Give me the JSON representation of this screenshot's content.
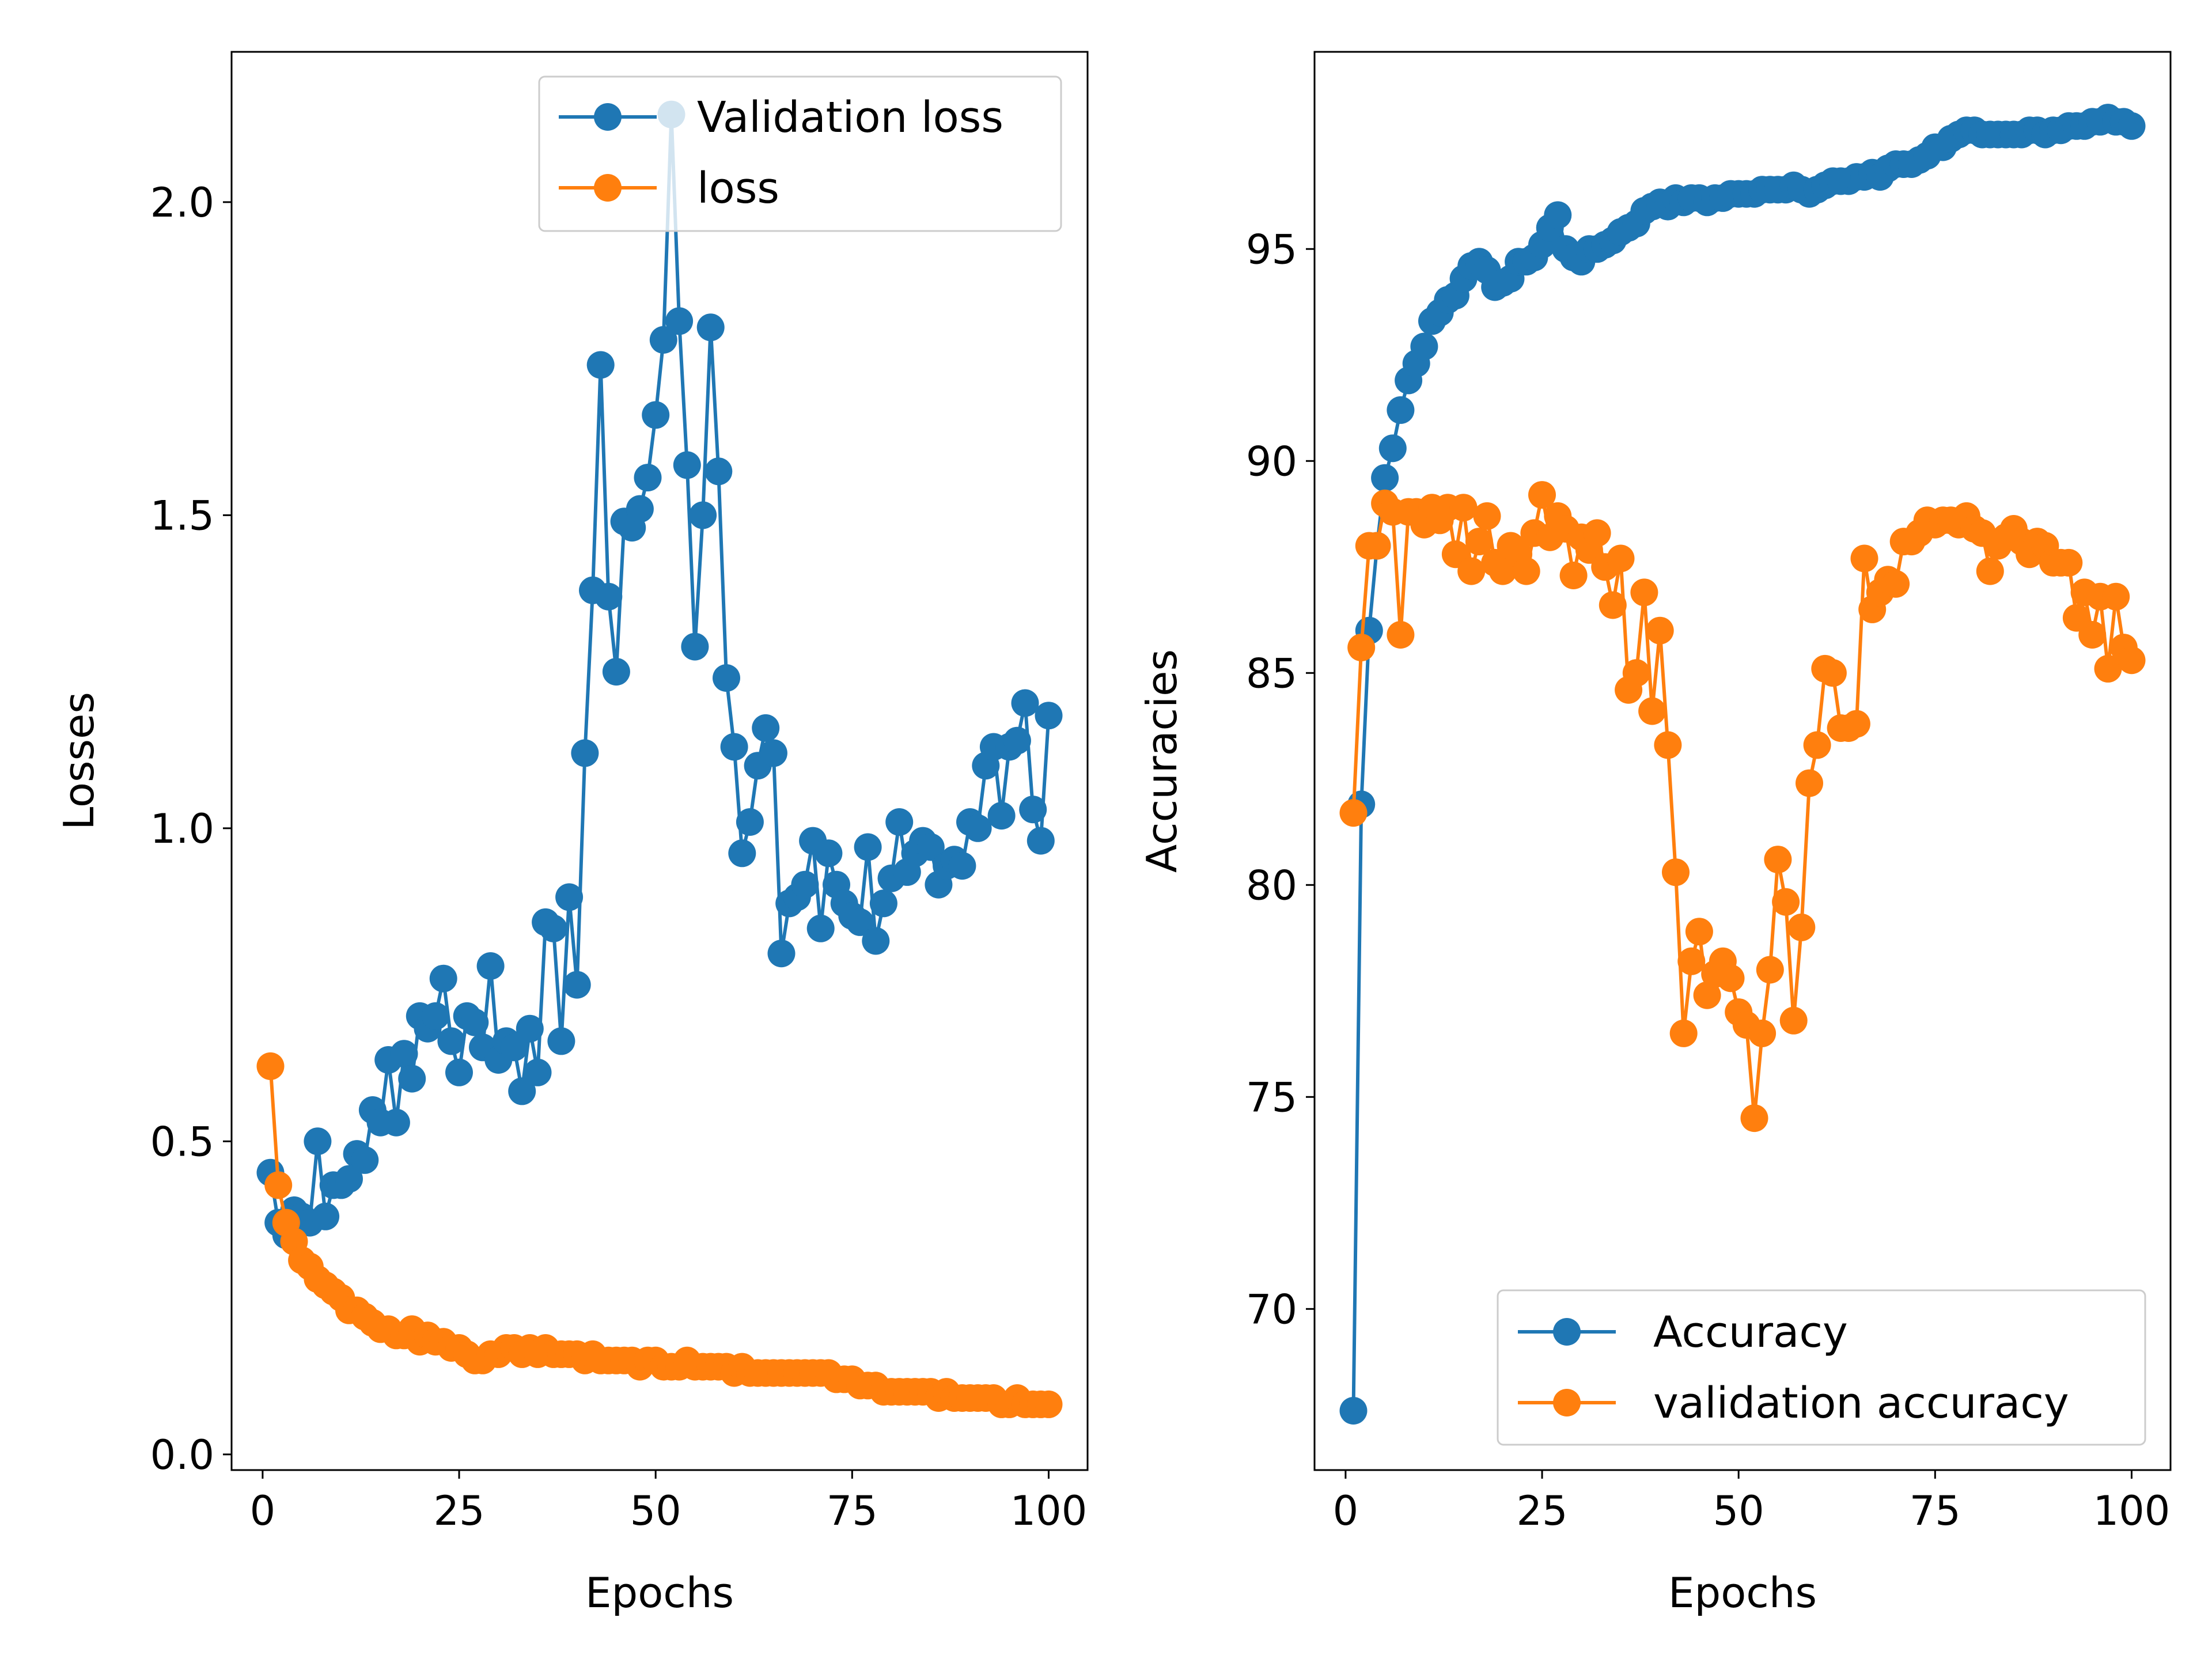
{
  "colors": {
    "blue": "#1f77b4",
    "orange": "#ff7f0e"
  },
  "chart_data": [
    {
      "type": "line",
      "xlabel": "Epochs",
      "ylabel": "Losses",
      "xlim": [
        -3.95,
        104.95
      ],
      "ylim": [
        -0.025,
        2.24
      ],
      "xticks": [
        0,
        25,
        50,
        75,
        100
      ],
      "yticks": [
        0.0,
        0.5,
        1.0,
        1.5,
        2.0
      ],
      "xtick_labels": [
        "0",
        "25",
        "50",
        "75",
        "100"
      ],
      "ytick_labels": [
        "0.0",
        "0.5",
        "1.0",
        "1.5",
        "2.0"
      ],
      "legend_position": "top-right",
      "x": [
        1,
        2,
        3,
        4,
        5,
        6,
        7,
        8,
        9,
        10,
        11,
        12,
        13,
        14,
        15,
        16,
        17,
        18,
        19,
        20,
        21,
        22,
        23,
        24,
        25,
        26,
        27,
        28,
        29,
        30,
        31,
        32,
        33,
        34,
        35,
        36,
        37,
        38,
        39,
        40,
        41,
        42,
        43,
        44,
        45,
        46,
        47,
        48,
        49,
        50,
        51,
        52,
        53,
        54,
        55,
        56,
        57,
        58,
        59,
        60,
        61,
        62,
        63,
        64,
        65,
        66,
        67,
        68,
        69,
        70,
        71,
        72,
        73,
        74,
        75,
        76,
        77,
        78,
        79,
        80,
        81,
        82,
        83,
        84,
        85,
        86,
        87,
        88,
        89,
        90,
        91,
        92,
        93,
        94,
        95,
        96,
        97,
        98,
        99,
        100
      ],
      "series": [
        {
          "name": "Validation loss",
          "color": "blue",
          "values": [
            0.45,
            0.37,
            0.35,
            0.39,
            0.38,
            0.37,
            0.5,
            0.38,
            0.43,
            0.43,
            0.44,
            0.48,
            0.47,
            0.55,
            0.53,
            0.63,
            0.53,
            0.64,
            0.6,
            0.7,
            0.68,
            0.7,
            0.76,
            0.66,
            0.61,
            0.7,
            0.69,
            0.65,
            0.78,
            0.63,
            0.66,
            0.65,
            0.58,
            0.68,
            0.61,
            0.85,
            0.84,
            0.66,
            0.89,
            0.75,
            1.12,
            1.38,
            1.74,
            1.37,
            1.25,
            1.49,
            1.48,
            1.51,
            1.56,
            1.66,
            1.78,
            2.14,
            1.81,
            1.58,
            1.29,
            1.5,
            1.8,
            1.57,
            1.24,
            1.13,
            0.96,
            1.01,
            1.1,
            1.16,
            1.12,
            0.8,
            0.88,
            0.89,
            0.91,
            0.98,
            0.84,
            0.96,
            0.91,
            0.88,
            0.86,
            0.85,
            0.97,
            0.82,
            0.88,
            0.92,
            1.01,
            0.93,
            0.96,
            0.98,
            0.97,
            0.91,
            0.94,
            0.95,
            0.94,
            1.01,
            1.0,
            1.1,
            1.13,
            1.02,
            1.13,
            1.14,
            1.2,
            1.03,
            0.98,
            1.18
          ]
        },
        {
          "name": "loss",
          "color": "orange",
          "values": [
            0.62,
            0.43,
            0.37,
            0.34,
            0.31,
            0.3,
            0.28,
            0.27,
            0.26,
            0.25,
            0.23,
            0.23,
            0.22,
            0.21,
            0.2,
            0.2,
            0.19,
            0.19,
            0.2,
            0.18,
            0.19,
            0.18,
            0.18,
            0.17,
            0.17,
            0.16,
            0.15,
            0.15,
            0.16,
            0.16,
            0.17,
            0.17,
            0.16,
            0.17,
            0.16,
            0.17,
            0.16,
            0.16,
            0.16,
            0.16,
            0.15,
            0.16,
            0.15,
            0.15,
            0.15,
            0.15,
            0.15,
            0.14,
            0.15,
            0.15,
            0.14,
            0.14,
            0.14,
            0.15,
            0.14,
            0.14,
            0.14,
            0.14,
            0.14,
            0.13,
            0.14,
            0.13,
            0.13,
            0.13,
            0.13,
            0.13,
            0.13,
            0.13,
            0.13,
            0.13,
            0.13,
            0.13,
            0.12,
            0.12,
            0.12,
            0.11,
            0.11,
            0.11,
            0.1,
            0.1,
            0.1,
            0.1,
            0.1,
            0.1,
            0.1,
            0.09,
            0.1,
            0.09,
            0.09,
            0.09,
            0.09,
            0.09,
            0.09,
            0.08,
            0.08,
            0.09,
            0.08,
            0.08,
            0.08,
            0.08
          ]
        }
      ]
    },
    {
      "type": "line",
      "xlabel": "Epochs",
      "ylabel": "Accuracies",
      "xlim": [
        -3.95,
        104.95
      ],
      "ylim": [
        66.2,
        99.65
      ],
      "xticks": [
        0,
        25,
        50,
        75,
        100
      ],
      "yticks": [
        70,
        75,
        80,
        85,
        90,
        95
      ],
      "xtick_labels": [
        "0",
        "25",
        "50",
        "75",
        "100"
      ],
      "ytick_labels": [
        "70",
        "75",
        "80",
        "85",
        "90",
        "95"
      ],
      "legend_position": "bottom-right",
      "x": [
        1,
        2,
        3,
        4,
        5,
        6,
        7,
        8,
        9,
        10,
        11,
        12,
        13,
        14,
        15,
        16,
        17,
        18,
        19,
        20,
        21,
        22,
        23,
        24,
        25,
        26,
        27,
        28,
        29,
        30,
        31,
        32,
        33,
        34,
        35,
        36,
        37,
        38,
        39,
        40,
        41,
        42,
        43,
        44,
        45,
        46,
        47,
        48,
        49,
        50,
        51,
        52,
        53,
        54,
        55,
        56,
        57,
        58,
        59,
        60,
        61,
        62,
        63,
        64,
        65,
        66,
        67,
        68,
        69,
        70,
        71,
        72,
        73,
        74,
        75,
        76,
        77,
        78,
        79,
        80,
        81,
        82,
        83,
        84,
        85,
        86,
        87,
        88,
        89,
        90,
        91,
        92,
        93,
        94,
        95,
        96,
        97,
        98,
        99,
        100
      ],
      "series": [
        {
          "name": "Accuracy",
          "color": "blue",
          "values": [
            67.6,
            81.9,
            86.0,
            88.0,
            89.6,
            90.3,
            91.2,
            91.9,
            92.3,
            92.7,
            93.3,
            93.5,
            93.8,
            93.9,
            94.3,
            94.6,
            94.7,
            94.5,
            94.1,
            94.2,
            94.3,
            94.7,
            94.7,
            94.8,
            95.1,
            95.5,
            95.8,
            95.0,
            94.8,
            94.7,
            95.0,
            95.0,
            95.1,
            95.2,
            95.4,
            95.5,
            95.6,
            95.9,
            96.0,
            96.1,
            96.0,
            96.2,
            96.1,
            96.2,
            96.2,
            96.1,
            96.2,
            96.2,
            96.3,
            96.3,
            96.3,
            96.3,
            96.4,
            96.4,
            96.4,
            96.4,
            96.5,
            96.4,
            96.3,
            96.4,
            96.5,
            96.6,
            96.6,
            96.6,
            96.7,
            96.7,
            96.8,
            96.7,
            96.9,
            97.0,
            97.0,
            97.0,
            97.1,
            97.2,
            97.4,
            97.4,
            97.6,
            97.7,
            97.8,
            97.8,
            97.7,
            97.7,
            97.7,
            97.7,
            97.7,
            97.7,
            97.8,
            97.8,
            97.7,
            97.8,
            97.8,
            97.9,
            97.9,
            97.9,
            98.0,
            98.0,
            98.1,
            98.0,
            98.0,
            97.9
          ]
        },
        {
          "name": "validation accuracy",
          "color": "orange",
          "values": [
            81.7,
            85.6,
            88.0,
            88.0,
            89.0,
            88.8,
            85.9,
            88.8,
            88.8,
            88.5,
            88.9,
            88.6,
            88.9,
            87.8,
            88.9,
            87.4,
            88.1,
            88.7,
            87.6,
            87.4,
            88.0,
            87.8,
            87.4,
            88.3,
            89.2,
            88.2,
            88.7,
            88.4,
            87.3,
            88.2,
            87.9,
            88.3,
            87.5,
            86.6,
            87.7,
            84.6,
            85.0,
            86.9,
            84.1,
            86.0,
            83.3,
            80.3,
            76.5,
            78.2,
            78.9,
            77.4,
            77.9,
            78.2,
            77.8,
            77.0,
            76.7,
            74.5,
            76.5,
            78.0,
            80.6,
            79.6,
            76.8,
            79.0,
            82.4,
            83.3,
            85.1,
            85.0,
            83.7,
            83.7,
            83.8,
            87.7,
            86.5,
            86.9,
            87.2,
            87.1,
            88.1,
            88.1,
            88.3,
            88.6,
            88.5,
            88.6,
            88.6,
            88.5,
            88.7,
            88.4,
            88.3,
            87.4,
            88.0,
            88.2,
            88.4,
            88.1,
            87.8,
            88.1,
            88.0,
            87.6,
            87.6,
            87.6,
            86.3,
            86.9,
            85.9,
            86.8,
            85.1,
            86.8,
            85.6,
            85.3
          ]
        }
      ]
    }
  ]
}
